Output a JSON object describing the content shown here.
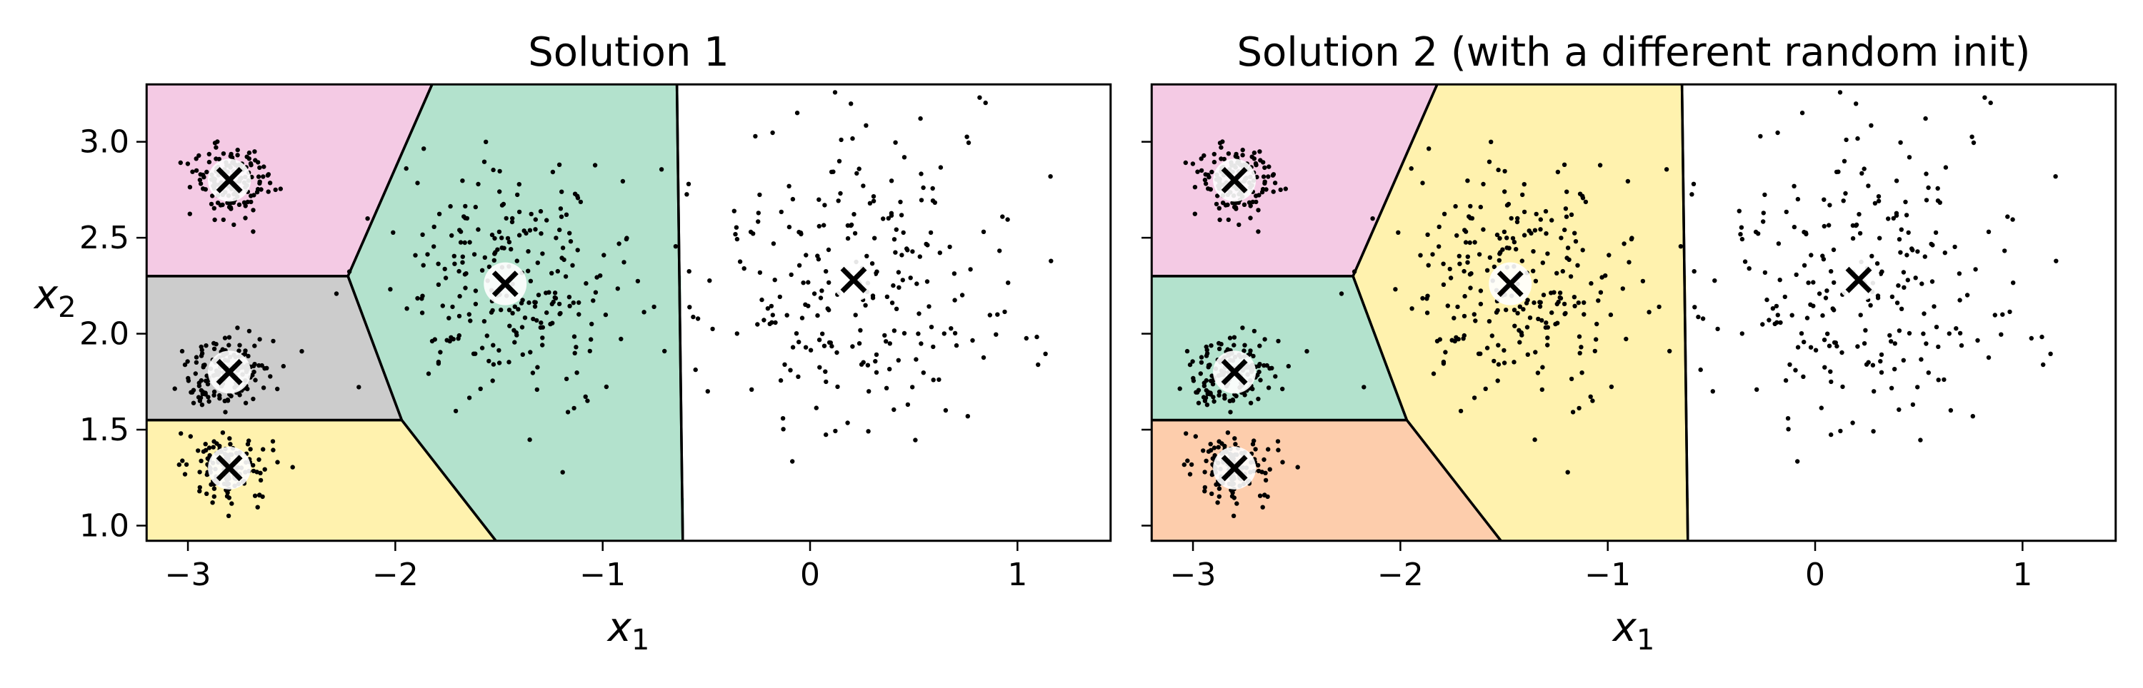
{
  "chart_data": [
    {
      "type": "scatter",
      "title": "Solution 1",
      "xlabel": "x",
      "xlabel_sub": "1",
      "ylabel": "x",
      "ylabel_sub": "2",
      "xlim": [
        -3.2,
        1.45
      ],
      "ylim": [
        0.92,
        3.3
      ],
      "xticks": [
        -3,
        -2,
        -1,
        0,
        1
      ],
      "xtick_labels": [
        "−3",
        "−2",
        "−1",
        "0",
        "1"
      ],
      "yticks": [
        1.0,
        1.5,
        2.0,
        2.5,
        3.0
      ],
      "ytick_labels": [
        "1.0",
        "1.5",
        "2.0",
        "2.5",
        "3.0"
      ],
      "show_y_tick_labels": true,
      "centroids": [
        {
          "x": -2.8,
          "y": 2.8,
          "region_color": "#f4cae4"
        },
        {
          "x": -2.8,
          "y": 1.8,
          "region_color": "#cccccc"
        },
        {
          "x": -2.8,
          "y": 1.3,
          "region_color": "#fff2ae"
        },
        {
          "x": -1.47,
          "y": 2.26,
          "region_color": "#b3e2cd"
        },
        {
          "x": 0.21,
          "y": 2.28,
          "region_color": "#fdcdac"
        }
      ]
    },
    {
      "type": "scatter",
      "title": "Solution 2 (with a different random init)",
      "xlabel": "x",
      "xlabel_sub": "1",
      "ylabel": "",
      "ylabel_sub": "",
      "xlim": [
        -3.2,
        1.45
      ],
      "ylim": [
        0.92,
        3.3
      ],
      "xticks": [
        -3,
        -2,
        -1,
        0,
        1
      ],
      "xtick_labels": [
        "−3",
        "−2",
        "−1",
        "0",
        "1"
      ],
      "yticks": [
        1.0,
        1.5,
        2.0,
        2.5,
        3.0
      ],
      "ytick_labels": [
        "1.0",
        "1.5",
        "2.0",
        "2.5",
        "3.0"
      ],
      "show_y_tick_labels": false,
      "centroids": [
        {
          "x": -2.8,
          "y": 2.8,
          "region_color": "#f4cae4"
        },
        {
          "x": -2.8,
          "y": 1.8,
          "region_color": "#b3e2cd"
        },
        {
          "x": -2.8,
          "y": 1.3,
          "region_color": "#fdcdac"
        },
        {
          "x": -1.47,
          "y": 2.26,
          "region_color": "#fff2ae"
        },
        {
          "x": 0.21,
          "y": 2.28,
          "region_color": "#cccccc"
        }
      ]
    }
  ],
  "blobs": [
    {
      "cx": -2.8,
      "cy": 2.8,
      "sx": 0.1,
      "sy": 0.1,
      "n": 150
    },
    {
      "cx": -2.8,
      "cy": 1.8,
      "sx": 0.1,
      "sy": 0.1,
      "n": 150
    },
    {
      "cx": -2.8,
      "cy": 1.3,
      "sx": 0.1,
      "sy": 0.1,
      "n": 150
    },
    {
      "cx": -1.47,
      "cy": 2.26,
      "sx": 0.3,
      "sy": 0.3,
      "n": 250
    },
    {
      "cx": 0.21,
      "cy": 2.28,
      "sx": 0.4,
      "sy": 0.4,
      "n": 250
    }
  ],
  "colors": {
    "points": "#000000",
    "boundaries": "#000000",
    "centroid_circle": "#ffffff",
    "centroid_cross": "#000000"
  }
}
